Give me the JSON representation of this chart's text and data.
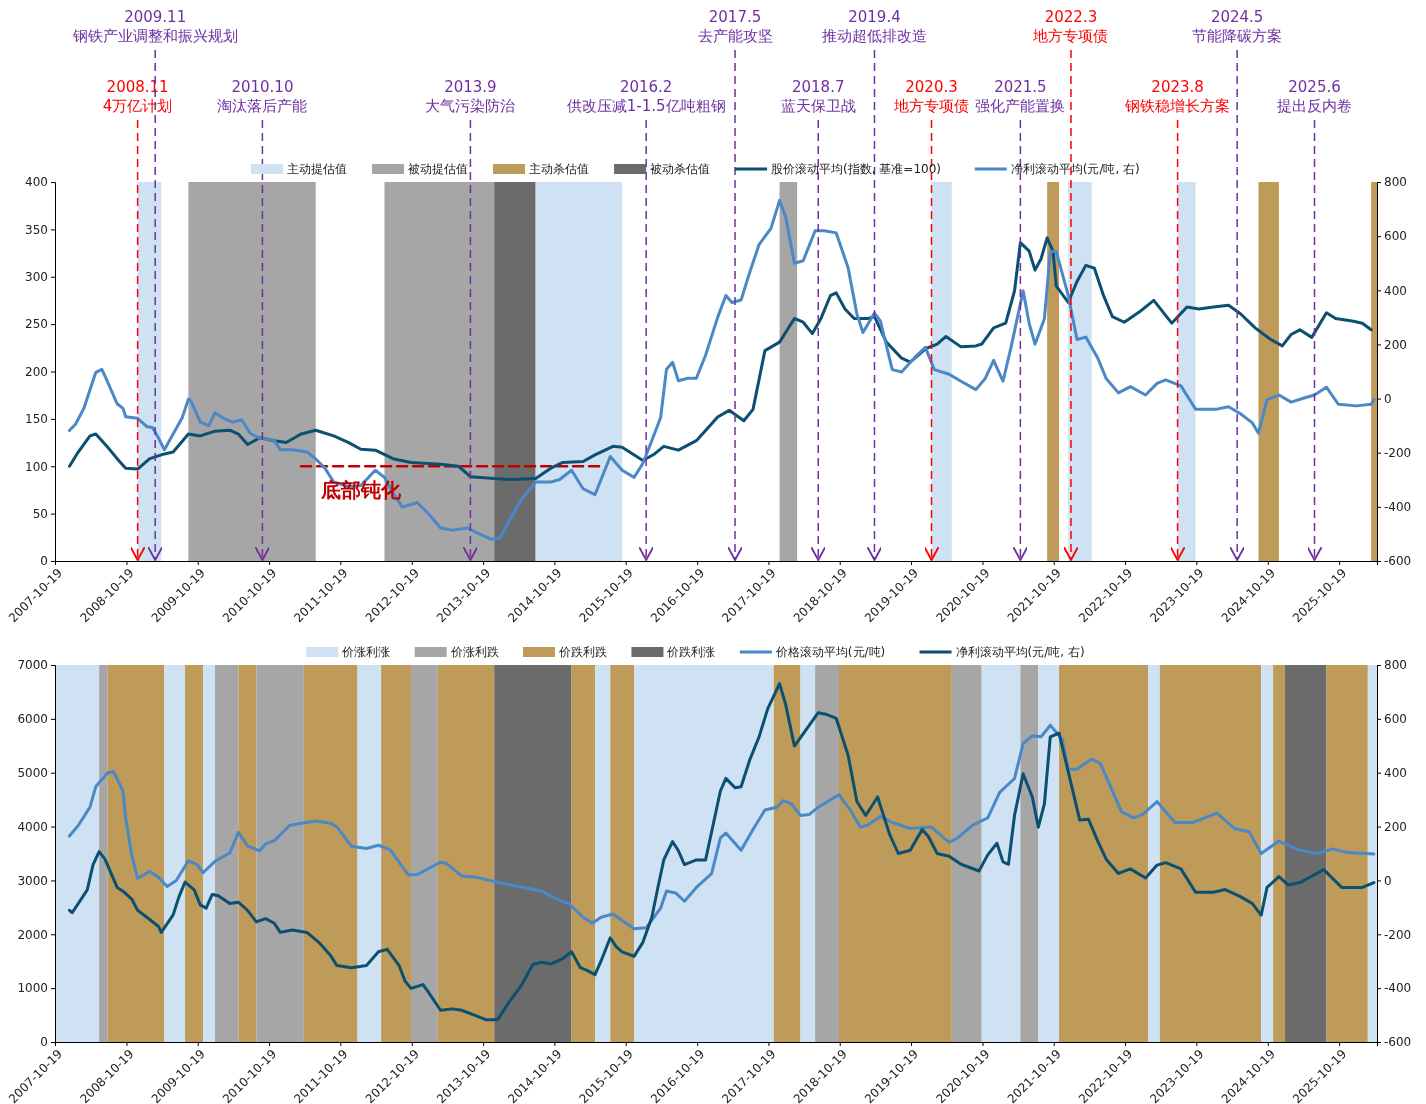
{
  "chart_data": [
    {
      "type": "line",
      "legend": "top",
      "xlim": [
        "2007-10-19",
        "2026-05-01"
      ],
      "xticks": [
        "2007-10-19",
        "2008-10-19",
        "2009-10-19",
        "2010-10-19",
        "2011-10-19",
        "2012-10-19",
        "2013-10-19",
        "2014-10-19",
        "2015-10-19",
        "2016-10-19",
        "2017-10-19",
        "2018-10-19",
        "2019-10-19",
        "2020-10-19",
        "2021-10-19",
        "2022-10-19",
        "2023-10-19",
        "2024-10-19",
        "2025-10-19"
      ],
      "ylim": [
        0,
        400
      ],
      "yticks": [
        0,
        50,
        100,
        150,
        200,
        250,
        300,
        350,
        400
      ],
      "y2lim": [
        -600,
        800
      ],
      "y2ticks": [
        -600,
        -400,
        -200,
        0,
        200,
        400,
        600,
        800
      ],
      "bands": [
        {
          "axis": "x",
          "from": "2008-12-15",
          "to": "2009-04-15",
          "label": "主动提估值",
          "color": "#cfe2f3"
        },
        {
          "axis": "x",
          "from": "2009-09-01",
          "to": "2011-06-15",
          "label": "被动提估值",
          "color": "#a6a6a6"
        },
        {
          "axis": "x",
          "from": "2012-06-01",
          "to": "2013-12-15",
          "color": "#a6a6a6"
        },
        {
          "axis": "x",
          "from": "2021-09-15",
          "to": "2021-11-15",
          "label": "主动杀估值",
          "color": "#bf9b5a"
        },
        {
          "axis": "x",
          "from": "2013-12-15",
          "to": "2014-07-15",
          "label": "被动杀估值",
          "color": "#6b6b6b"
        },
        {
          "axis": "x",
          "from": "2014-07-15",
          "to": "2015-10-01",
          "color": "#cfe2f3"
        },
        {
          "axis": "x",
          "from": "2017-12-15",
          "to": "2018-03-15",
          "color": "#a6a6a6"
        },
        {
          "axis": "x",
          "from": "2020-02-01",
          "to": "2020-05-15",
          "color": "#cfe2f3"
        },
        {
          "axis": "x",
          "from": "2022-01-01",
          "to": "2022-05-01",
          "color": "#cfe2f3"
        },
        {
          "axis": "x",
          "from": "2023-07-15",
          "to": "2023-10-15",
          "color": "#cfe2f3"
        },
        {
          "axis": "x",
          "from": "2024-09-01",
          "to": "2024-12-15",
          "color": "#bf9b5a"
        },
        {
          "axis": "x",
          "from": "2026-04-01",
          "to": "2026-05-01",
          "color": "#bf9b5a"
        }
      ],
      "ref_lines": [
        {
          "axis": "x",
          "value": "2008-12-15",
          "label": "2008.11\n4万亿计划",
          "color": "#ff0000",
          "line_style": "dashed"
        },
        {
          "axis": "x",
          "value": "2009-03-15",
          "label": "2009.11\n钢铁产业调整和振兴规划",
          "color": "#7030a0",
          "line_style": "dashed"
        },
        {
          "axis": "x",
          "value": "2010-09-15",
          "label": "2010.10\n淘汰落后产能",
          "color": "#7030a0",
          "line_style": "dashed"
        },
        {
          "axis": "x",
          "value": "2013-08-15",
          "label": "2013.9\n大气污染防治",
          "color": "#7030a0",
          "line_style": "dashed"
        },
        {
          "axis": "x",
          "value": "2016-02-01",
          "label": "2016.2\n供改压减1-1.5亿吨粗钢",
          "color": "#7030a0",
          "line_style": "dashed"
        },
        {
          "axis": "x",
          "value": "2017-05-01",
          "label": "2017.5\n去产能攻坚",
          "color": "#7030a0",
          "line_style": "dashed"
        },
        {
          "axis": "x",
          "value": "2018-07-01",
          "label": "2018.7\n蓝天保卫战",
          "color": "#7030a0",
          "line_style": "dashed"
        },
        {
          "axis": "x",
          "value": "2019-04-15",
          "label": "2019.4\n推动超低排改造",
          "color": "#7030a0",
          "line_style": "dashed"
        },
        {
          "axis": "x",
          "value": "2020-02-01",
          "label": "2020.3\n地方专项债",
          "color": "#ff0000",
          "line_style": "dashed"
        },
        {
          "axis": "x",
          "value": "2021-05-01",
          "label": "2021.5\n强化产能置换",
          "color": "#7030a0",
          "line_style": "dashed"
        },
        {
          "axis": "x",
          "value": "2022-01-15",
          "label": "2022.3\n地方专项债",
          "color": "#ff0000",
          "line_style": "dashed"
        },
        {
          "axis": "x",
          "value": "2023-07-15",
          "label": "2023.8\n钢铁稳增长方案",
          "color": "#ff0000",
          "line_style": "dashed"
        },
        {
          "axis": "x",
          "value": "2024-05-15",
          "label": "2024.5\n节能降碳方案",
          "color": "#7030a0",
          "line_style": "dashed"
        },
        {
          "axis": "x",
          "value": "2025-06-15",
          "label": "2025.6\n提出反内卷",
          "color": "#7030a0",
          "line_style": "dashed"
        }
      ],
      "annotations": [
        {
          "text": "底部钝化",
          "x": "2012-02-01",
          "y": 78
        }
      ],
      "series": [
        {
          "color": "#c00000",
          "line_style": "dashed",
          "x": [
            "2011-04-01",
            "2015-06-15"
          ],
          "values": [
            100,
            100
          ]
        },
        {
          "name": "股价滚动平均(指数, 基准=100)",
          "color": "#0b4f71",
          "x": [
            "2008-01-01",
            "2008-02-15",
            "2008-04-15",
            "2008-05-15",
            "2008-07-15",
            "2008-09-01",
            "2008-10-15",
            "2008-12-15",
            "2009-02-15",
            "2009-05-01",
            "2009-06-15",
            "2009-09-01",
            "2009-11-01",
            "2010-01-15",
            "2010-04-01",
            "2010-05-15",
            "2010-07-01",
            "2010-09-01",
            "2010-11-15",
            "2011-01-15",
            "2011-04-01",
            "2011-06-15",
            "2011-09-15",
            "2011-12-01",
            "2012-02-01",
            "2012-04-15",
            "2012-07-15",
            "2012-10-15",
            "2013-03-15",
            "2013-06-15",
            "2013-08-15",
            "2013-12-15",
            "2014-03-15",
            "2014-07-15",
            "2014-10-01",
            "2014-12-01",
            "2015-03-15",
            "2015-05-15",
            "2015-08-15",
            "2015-10-01",
            "2016-01-15",
            "2016-03-15",
            "2016-05-01",
            "2016-07-15",
            "2016-10-15",
            "2017-02-01",
            "2017-04-01",
            "2017-06-15",
            "2017-08-01",
            "2017-10-01",
            "2017-12-15",
            "2018-03-01",
            "2018-04-15",
            "2018-06-01",
            "2018-07-15",
            "2018-09-01",
            "2018-10-01",
            "2018-11-15",
            "2019-01-01",
            "2019-03-15",
            "2019-04-15",
            "2019-06-15",
            "2019-09-01",
            "2019-10-15",
            "2020-01-01",
            "2020-03-01",
            "2020-04-15",
            "2020-07-01",
            "2020-09-15",
            "2020-10-15",
            "2020-12-15",
            "2021-02-15",
            "2021-04-01",
            "2021-05-01",
            "2021-06-15",
            "2021-07-15",
            "2021-08-15",
            "2021-09-15",
            "2021-10-15",
            "2021-11-01",
            "2022-01-01",
            "2022-02-15",
            "2022-04-01",
            "2022-05-15",
            "2022-07-01",
            "2022-08-15",
            "2022-10-15",
            "2023-01-01",
            "2023-03-15",
            "2023-06-15",
            "2023-09-01",
            "2023-11-01",
            "2024-01-15",
            "2024-04-01",
            "2024-06-01",
            "2024-08-15",
            "2024-11-01",
            "2025-01-01",
            "2025-02-15",
            "2025-04-01",
            "2025-06-01",
            "2025-08-15",
            "2025-10-01",
            "2026-01-01",
            "2026-02-15",
            "2026-04-01"
          ],
          "values": [
            100,
            115,
            132,
            134,
            120,
            108,
            98,
            97,
            108,
            113,
            115,
            134,
            132,
            137,
            138,
            134,
            123,
            130,
            127,
            125,
            134,
            138,
            132,
            125,
            118,
            117,
            108,
            104,
            102,
            100,
            89,
            87,
            86,
            87,
            98,
            104,
            105,
            112,
            121,
            120,
            106,
            113,
            121,
            117,
            127,
            152,
            159,
            148,
            160,
            222,
            231,
            256,
            252,
            240,
            256,
            280,
            283,
            266,
            256,
            256,
            258,
            231,
            214,
            210,
            224,
            229,
            237,
            226,
            227,
            229,
            246,
            251,
            285,
            336,
            327,
            307,
            319,
            341,
            327,
            290,
            273,
            295,
            312,
            309,
            280,
            258,
            252,
            263,
            275,
            251,
            268,
            266,
            268,
            270,
            261,
            246,
            234,
            227,
            239,
            244,
            236,
            262,
            256,
            253,
            251,
            244
          ]
        },
        {
          "name": "净利滚动平均(元/吨, 右)",
          "color": "#4a88c8",
          "axis": "y2",
          "x": [
            "2008-01-01",
            "2008-02-01",
            "2008-03-15",
            "2008-05-15",
            "2008-06-15",
            "2008-07-01",
            "2008-09-01",
            "2008-10-01",
            "2008-10-15",
            "2008-12-15",
            "2009-02-01",
            "2009-03-01",
            "2009-04-01",
            "2009-05-01",
            "2009-08-01",
            "2009-09-01",
            "2009-09-15",
            "2009-11-01",
            "2009-12-15",
            "2010-01-15",
            "2010-03-01",
            "2010-04-15",
            "2010-06-01",
            "2010-07-15",
            "2010-09-01",
            "2010-11-15",
            "2010-12-15",
            "2011-02-15",
            "2011-05-01",
            "2011-06-15",
            "2011-08-01",
            "2011-09-15",
            "2011-12-01",
            "2012-02-01",
            "2012-04-15",
            "2012-06-01",
            "2012-07-15",
            "2012-09-01",
            "2012-11-15",
            "2013-01-15",
            "2013-03-15",
            "2013-05-15",
            "2013-08-01",
            "2013-09-15",
            "2013-12-01",
            "2014-01-15",
            "2014-03-01",
            "2014-05-01",
            "2014-07-15",
            "2014-10-01",
            "2014-11-15",
            "2015-01-15",
            "2015-03-15",
            "2015-05-15",
            "2015-06-15",
            "2015-08-01",
            "2015-10-01",
            "2015-12-01",
            "2016-01-15",
            "2016-03-01",
            "2016-04-15",
            "2016-05-15",
            "2016-06-15",
            "2016-07-15",
            "2016-09-01",
            "2016-10-15",
            "2016-12-01",
            "2017-02-01",
            "2017-03-15",
            "2017-04-15",
            "2017-06-01",
            "2017-07-15",
            "2017-09-01",
            "2017-11-01",
            "2017-12-15",
            "2018-01-15",
            "2018-03-01",
            "2018-04-15",
            "2018-06-15",
            "2018-08-01",
            "2018-10-01",
            "2018-12-01",
            "2019-01-15",
            "2019-02-15",
            "2019-04-15",
            "2019-05-15",
            "2019-07-15",
            "2019-09-01",
            "2019-11-15",
            "2020-01-01",
            "2020-02-15",
            "2020-05-01",
            "2020-07-01",
            "2020-09-15",
            "2020-11-01",
            "2020-12-15",
            "2021-02-01",
            "2021-03-15",
            "2021-05-15",
            "2021-06-15",
            "2021-07-15",
            "2021-09-01",
            "2021-10-01",
            "2021-11-01",
            "2022-01-01",
            "2022-02-15",
            "2022-04-01",
            "2022-06-01",
            "2022-07-15",
            "2022-09-15",
            "2022-11-15",
            "2023-02-01",
            "2023-04-01",
            "2023-05-15",
            "2023-08-01",
            "2023-10-15",
            "2023-12-15",
            "2024-02-01",
            "2024-04-01",
            "2024-06-01",
            "2024-08-01",
            "2024-09-01",
            "2024-10-15",
            "2024-12-15",
            "2025-02-15",
            "2025-05-01",
            "2025-06-15",
            "2025-08-15",
            "2025-10-15",
            "2026-01-15",
            "2026-04-01",
            "2026-04-15"
          ],
          "values": [
            -118,
            -95,
            -36,
            97,
            108,
            83,
            -19,
            -36,
            -67,
            -73,
            -104,
            -107,
            -146,
            -189,
            -70,
            -2,
            -10,
            -87,
            -100,
            -53,
            -73,
            -87,
            -78,
            -129,
            -146,
            -155,
            -189,
            -189,
            -197,
            -223,
            -257,
            -308,
            -325,
            -321,
            -265,
            -291,
            -350,
            -401,
            -384,
            -427,
            -478,
            -486,
            -478,
            -495,
            -520,
            -515,
            -452,
            -376,
            -308,
            -308,
            -299,
            -265,
            -333,
            -355,
            -299,
            -214,
            -265,
            -291,
            -240,
            -155,
            -70,
            108,
            134,
            66,
            75,
            75,
            160,
            300,
            381,
            355,
            364,
            466,
            569,
            629,
            732,
            672,
            500,
            509,
            620,
            620,
            612,
            483,
            312,
            244,
            316,
            287,
            107,
            98,
            158,
            189,
            107,
            90,
            64,
            33,
            73,
            141,
            64,
            192,
            398,
            278,
            201,
            295,
            543,
            543,
            381,
            218,
            227,
            150,
            73,
            21,
            44,
            13,
            56,
            69,
            47,
            -39,
            -39,
            -39,
            -30,
            -56,
            -90,
            -128,
            -4,
            13,
            -13,
            4,
            13,
            42,
            -21,
            -27,
            -21,
            -4
          ]
        }
      ]
    },
    {
      "type": "line",
      "legend": "top",
      "xlim": [
        "2007-10-19",
        "2026-05-01"
      ],
      "xticks": [
        "2007-10-19",
        "2008-10-19",
        "2009-10-19",
        "2010-10-19",
        "2011-10-19",
        "2012-10-19",
        "2013-10-19",
        "2014-10-19",
        "2015-10-19",
        "2016-10-19",
        "2017-10-19",
        "2018-10-19",
        "2019-10-19",
        "2020-10-19",
        "2021-10-19",
        "2022-10-19",
        "2023-10-19",
        "2024-10-19",
        "2025-10-19"
      ],
      "ylim": [
        0,
        7000
      ],
      "yticks": [
        0,
        1000,
        2000,
        3000,
        4000,
        5000,
        6000,
        7000
      ],
      "y2lim": [
        -600,
        800
      ],
      "y2ticks": [
        -600,
        -400,
        -200,
        0,
        200,
        400,
        600,
        800
      ],
      "bands": [
        {
          "axis": "x",
          "from": "2007-10-19",
          "to": "2008-06-01",
          "label": "价涨利涨",
          "color": "#cfe2f3"
        },
        {
          "axis": "x",
          "from": "2008-06-01",
          "to": "2008-07-15",
          "label": "价涨利跌",
          "color": "#a6a6a6"
        },
        {
          "axis": "x",
          "from": "2008-07-15",
          "to": "2009-05-01",
          "label": "价跌利跌",
          "color": "#bf9b5a"
        },
        {
          "axis": "x",
          "from": "2009-05-01",
          "to": "2009-08-15",
          "color": "#cfe2f3"
        },
        {
          "axis": "x",
          "from": "2009-08-15",
          "to": "2009-11-15",
          "color": "#bf9b5a"
        },
        {
          "axis": "x",
          "from": "2009-11-15",
          "to": "2010-01-15",
          "color": "#cfe2f3"
        },
        {
          "axis": "x",
          "from": "2010-01-15",
          "to": "2010-05-15",
          "color": "#a6a6a6"
        },
        {
          "axis": "x",
          "from": "2010-05-15",
          "to": "2010-08-15",
          "color": "#bf9b5a"
        },
        {
          "axis": "x",
          "from": "2010-08-15",
          "to": "2011-04-15",
          "color": "#a6a6a6"
        },
        {
          "axis": "x",
          "from": "2011-04-15",
          "to": "2012-01-15",
          "color": "#bf9b5a"
        },
        {
          "axis": "x",
          "from": "2012-01-15",
          "to": "2012-05-15",
          "color": "#cfe2f3"
        },
        {
          "axis": "x",
          "from": "2012-05-15",
          "to": "2012-10-15",
          "color": "#bf9b5a"
        },
        {
          "axis": "x",
          "from": "2012-10-15",
          "to": "2013-03-01",
          "color": "#a6a6a6"
        },
        {
          "axis": "x",
          "from": "2013-03-01",
          "to": "2013-12-15",
          "color": "#bf9b5a"
        },
        {
          "axis": "x",
          "from": "2013-12-15",
          "to": "2015-01-15",
          "label": "价跌利涨",
          "color": "#6b6b6b"
        },
        {
          "axis": "x",
          "from": "2015-01-15",
          "to": "2015-05-15",
          "color": "#bf9b5a"
        },
        {
          "axis": "x",
          "from": "2015-05-15",
          "to": "2015-08-01",
          "color": "#cfe2f3"
        },
        {
          "axis": "x",
          "from": "2015-08-01",
          "to": "2015-12-01",
          "color": "#bf9b5a"
        },
        {
          "axis": "x",
          "from": "2015-12-01",
          "to": "2017-11-15",
          "color": "#cfe2f3"
        },
        {
          "axis": "x",
          "from": "2017-11-15",
          "to": "2018-04-01",
          "color": "#bf9b5a"
        },
        {
          "axis": "x",
          "from": "2018-04-01",
          "to": "2018-06-15",
          "color": "#cfe2f3"
        },
        {
          "axis": "x",
          "from": "2018-06-15",
          "to": "2018-10-15",
          "color": "#a6a6a6"
        },
        {
          "axis": "x",
          "from": "2018-10-15",
          "to": "2020-05-15",
          "color": "#bf9b5a"
        },
        {
          "axis": "x",
          "from": "2020-05-15",
          "to": "2020-10-15",
          "color": "#a6a6a6"
        },
        {
          "axis": "x",
          "from": "2020-10-15",
          "to": "2021-05-01",
          "color": "#cfe2f3"
        },
        {
          "axis": "x",
          "from": "2021-05-01",
          "to": "2021-08-01",
          "color": "#a6a6a6"
        },
        {
          "axis": "x",
          "from": "2021-08-01",
          "to": "2021-11-15",
          "color": "#cfe2f3"
        },
        {
          "axis": "x",
          "from": "2021-11-15",
          "to": "2023-02-15",
          "color": "#bf9b5a"
        },
        {
          "axis": "x",
          "from": "2023-02-15",
          "to": "2023-04-15",
          "color": "#cfe2f3"
        },
        {
          "axis": "x",
          "from": "2023-04-15",
          "to": "2024-09-15",
          "color": "#bf9b5a"
        },
        {
          "axis": "x",
          "from": "2024-09-15",
          "to": "2024-11-15",
          "color": "#cfe2f3"
        },
        {
          "axis": "x",
          "from": "2024-11-15",
          "to": "2025-01-15",
          "color": "#bf9b5a"
        },
        {
          "axis": "x",
          "from": "2025-01-15",
          "to": "2025-08-15",
          "color": "#6b6b6b"
        },
        {
          "axis": "x",
          "from": "2025-08-15",
          "to": "2026-03-15",
          "color": "#bf9b5a"
        },
        {
          "axis": "x",
          "from": "2026-03-15",
          "to": "2026-05-01",
          "color": "#cfe2f3"
        }
      ],
      "series": [
        {
          "name": "价格滚动平均(元/吨)",
          "color": "#4a88c8",
          "x": [
            "2008-01-01",
            "2008-02-15",
            "2008-04-15",
            "2008-05-15",
            "2008-07-15",
            "2008-08-15",
            "2008-10-01",
            "2008-10-15",
            "2008-11-15",
            "2008-12-15",
            "2009-02-15",
            "2009-04-01",
            "2009-05-15",
            "2009-07-01",
            "2009-09-01",
            "2009-10-15",
            "2009-11-15",
            "2010-01-15",
            "2010-04-01",
            "2010-05-15",
            "2010-07-01",
            "2010-09-01",
            "2010-10-01",
            "2010-11-15",
            "2011-02-01",
            "2011-04-01",
            "2011-06-15",
            "2011-09-01",
            "2011-10-01",
            "2011-12-15",
            "2012-03-01",
            "2012-05-01",
            "2012-07-01",
            "2012-10-01",
            "2012-11-15",
            "2013-03-15",
            "2013-04-15",
            "2013-07-01",
            "2013-09-15",
            "2013-12-15",
            "2014-04-15",
            "2014-08-15",
            "2014-11-15",
            "2015-01-01",
            "2015-03-15",
            "2015-05-01",
            "2015-06-15",
            "2015-08-15",
            "2015-10-01",
            "2015-12-01",
            "2016-02-01",
            "2016-04-15",
            "2016-05-15",
            "2016-07-01",
            "2016-08-15",
            "2016-10-15",
            "2017-01-01",
            "2017-02-15",
            "2017-03-15",
            "2017-06-01",
            "2017-08-01",
            "2017-10-01",
            "2017-12-01",
            "2018-01-01",
            "2018-02-15",
            "2018-04-01",
            "2018-05-15",
            "2018-07-01",
            "2018-10-15",
            "2018-12-15",
            "2019-02-01",
            "2019-03-15",
            "2019-05-15",
            "2019-07-15",
            "2019-10-15",
            "2020-02-01",
            "2020-05-01",
            "2020-06-15",
            "2020-09-01",
            "2020-11-15",
            "2021-01-15",
            "2021-04-01",
            "2021-05-15",
            "2021-07-01",
            "2021-08-15",
            "2021-10-01",
            "2021-12-01",
            "2022-01-01",
            "2022-02-15",
            "2022-05-01",
            "2022-06-15",
            "2022-10-01",
            "2022-12-01",
            "2023-01-15",
            "2023-04-01",
            "2023-07-01",
            "2023-10-01",
            "2024-02-01",
            "2024-05-01",
            "2024-07-15",
            "2024-09-15",
            "2024-12-15",
            "2025-04-01",
            "2025-07-01",
            "2025-09-15",
            "2025-12-01",
            "2026-04-15"
          ],
          "values": [
            3824,
            4020,
            4360,
            4743,
            5000,
            5016,
            4658,
            4147,
            3466,
            3040,
            3168,
            3057,
            2887,
            2998,
            3364,
            3296,
            3142,
            3355,
            3509,
            3892,
            3636,
            3551,
            3679,
            3739,
            4020,
            4062,
            4105,
            4062,
            3994,
            3636,
            3594,
            3653,
            3568,
            3100,
            3108,
            3338,
            3313,
            3083,
            3057,
            2981,
            2887,
            2802,
            2631,
            2572,
            2317,
            2206,
            2317,
            2376,
            2257,
            2103,
            2120,
            2487,
            2802,
            2768,
            2614,
            2870,
            3125,
            3790,
            3879,
            3560,
            3947,
            4309,
            4360,
            4481,
            4420,
            4205,
            4223,
            4360,
            4592,
            4291,
            3990,
            4033,
            4188,
            4076,
            3965,
            3990,
            3707,
            3793,
            4033,
            4162,
            4635,
            4893,
            5538,
            5685,
            5667,
            5882,
            5624,
            5065,
            5065,
            5255,
            5169,
            4274,
            4162,
            4223,
            4463,
            4076,
            4076,
            4248,
            3965,
            3904,
            3500,
            3732,
            3560,
            3500,
            3586,
            3517,
            3492
          ]
        },
        {
          "name": "净利滚动平均(元/吨, 右)",
          "color": "#0b4f71",
          "axis": "y2",
          "x": [
            "2008-01-01",
            "2008-01-15",
            "2008-04-01",
            "2008-05-01",
            "2008-06-01",
            "2008-07-01",
            "2008-09-01",
            "2008-10-01",
            "2008-11-15",
            "2008-12-15",
            "2009-02-15",
            "2009-04-01",
            "2009-04-15",
            "2009-06-15",
            "2009-07-15",
            "2009-08-15",
            "2009-10-01",
            "2009-11-01",
            "2009-12-01",
            "2010-01-01",
            "2010-02-01",
            "2010-04-01",
            "2010-05-15",
            "2010-07-01",
            "2010-08-15",
            "2010-10-01",
            "2010-11-15",
            "2010-12-15",
            "2011-02-15",
            "2011-05-01",
            "2011-07-01",
            "2011-09-01",
            "2011-10-01",
            "2011-12-15",
            "2012-03-01",
            "2012-05-01",
            "2012-06-15",
            "2012-08-15",
            "2012-09-15",
            "2012-10-15",
            "2012-12-15",
            "2013-01-15",
            "2013-03-15",
            "2013-05-15",
            "2013-07-01",
            "2013-09-15",
            "2013-11-01",
            "2014-01-01",
            "2014-03-01",
            "2014-05-01",
            "2014-07-01",
            "2014-08-15",
            "2014-10-01",
            "2014-12-01",
            "2015-01-15",
            "2015-03-01",
            "2015-04-01",
            "2015-05-15",
            "2015-06-15",
            "2015-08-01",
            "2015-09-01",
            "2015-10-01",
            "2015-12-01",
            "2016-01-15",
            "2016-03-01",
            "2016-04-01",
            "2016-05-01",
            "2016-06-15",
            "2016-07-15",
            "2016-08-15",
            "2016-10-15",
            "2016-12-01",
            "2017-02-15",
            "2017-03-15",
            "2017-05-01",
            "2017-06-01",
            "2017-07-15",
            "2017-09-01",
            "2017-10-15",
            "2017-12-15",
            "2018-01-15",
            "2018-03-01",
            "2018-07-01",
            "2018-08-15",
            "2018-10-01",
            "2018-12-01",
            "2019-01-15",
            "2019-03-01",
            "2019-05-01",
            "2019-07-01",
            "2019-08-15",
            "2019-10-15",
            "2019-12-15",
            "2020-01-15",
            "2020-03-01",
            "2020-05-01",
            "2020-07-01",
            "2020-10-01",
            "2020-11-15",
            "2021-01-01",
            "2021-02-01",
            "2021-03-01",
            "2021-04-01",
            "2021-05-15",
            "2021-07-01",
            "2021-08-01",
            "2021-09-01",
            "2021-10-01",
            "2021-11-15",
            "2022-01-01",
            "2022-03-01",
            "2022-04-15",
            "2022-06-01",
            "2022-07-15",
            "2022-09-15",
            "2022-11-15",
            "2023-02-01",
            "2023-04-01",
            "2023-05-15",
            "2023-08-01",
            "2023-10-15",
            "2024-01-15",
            "2024-03-15",
            "2024-06-01",
            "2024-08-01",
            "2024-09-15",
            "2024-10-15",
            "2024-12-15",
            "2025-02-01",
            "2025-04-01",
            "2025-05-15",
            "2025-08-01",
            "2025-11-01",
            "2026-02-15",
            "2026-04-15"
          ],
          "values": [
            -111,
            -120,
            -35,
            59,
            107,
            79,
            -26,
            -40,
            -69,
            -111,
            -145,
            -171,
            -193,
            -128,
            -60,
            -6,
            -35,
            -91,
            -103,
            -52,
            -57,
            -86,
            -81,
            -111,
            -154,
            -142,
            -159,
            -193,
            -184,
            -193,
            -230,
            -281,
            -316,
            -324,
            -316,
            -265,
            -256,
            -316,
            -375,
            -401,
            -387,
            -418,
            -482,
            -477,
            -482,
            -503,
            -517,
            -517,
            -452,
            -392,
            -312,
            -304,
            -310,
            -290,
            -265,
            -324,
            -333,
            -350,
            -299,
            -213,
            -247,
            -265,
            -282,
            -230,
            -137,
            -26,
            76,
            144,
            110,
            59,
            76,
            76,
            332,
            379,
            344,
            348,
            447,
            533,
            637,
            731,
            654,
            499,
            623,
            616,
            602,
            465,
            293,
            241,
            310,
            172,
            100,
            112,
            189,
            164,
            100,
            90,
            60,
            35,
            95,
            138,
            69,
            60,
            241,
            396,
            310,
            198,
            284,
            533,
            547,
            404,
            224,
            227,
            146,
            78,
            26,
            43,
            9,
            57,
            66,
            43,
            -44,
            -44,
            -34,
            -60,
            -86,
            -129,
            -26,
            14,
            -17,
            -8,
            9,
            40,
            -26,
            -26,
            -8
          ]
        }
      ]
    }
  ]
}
